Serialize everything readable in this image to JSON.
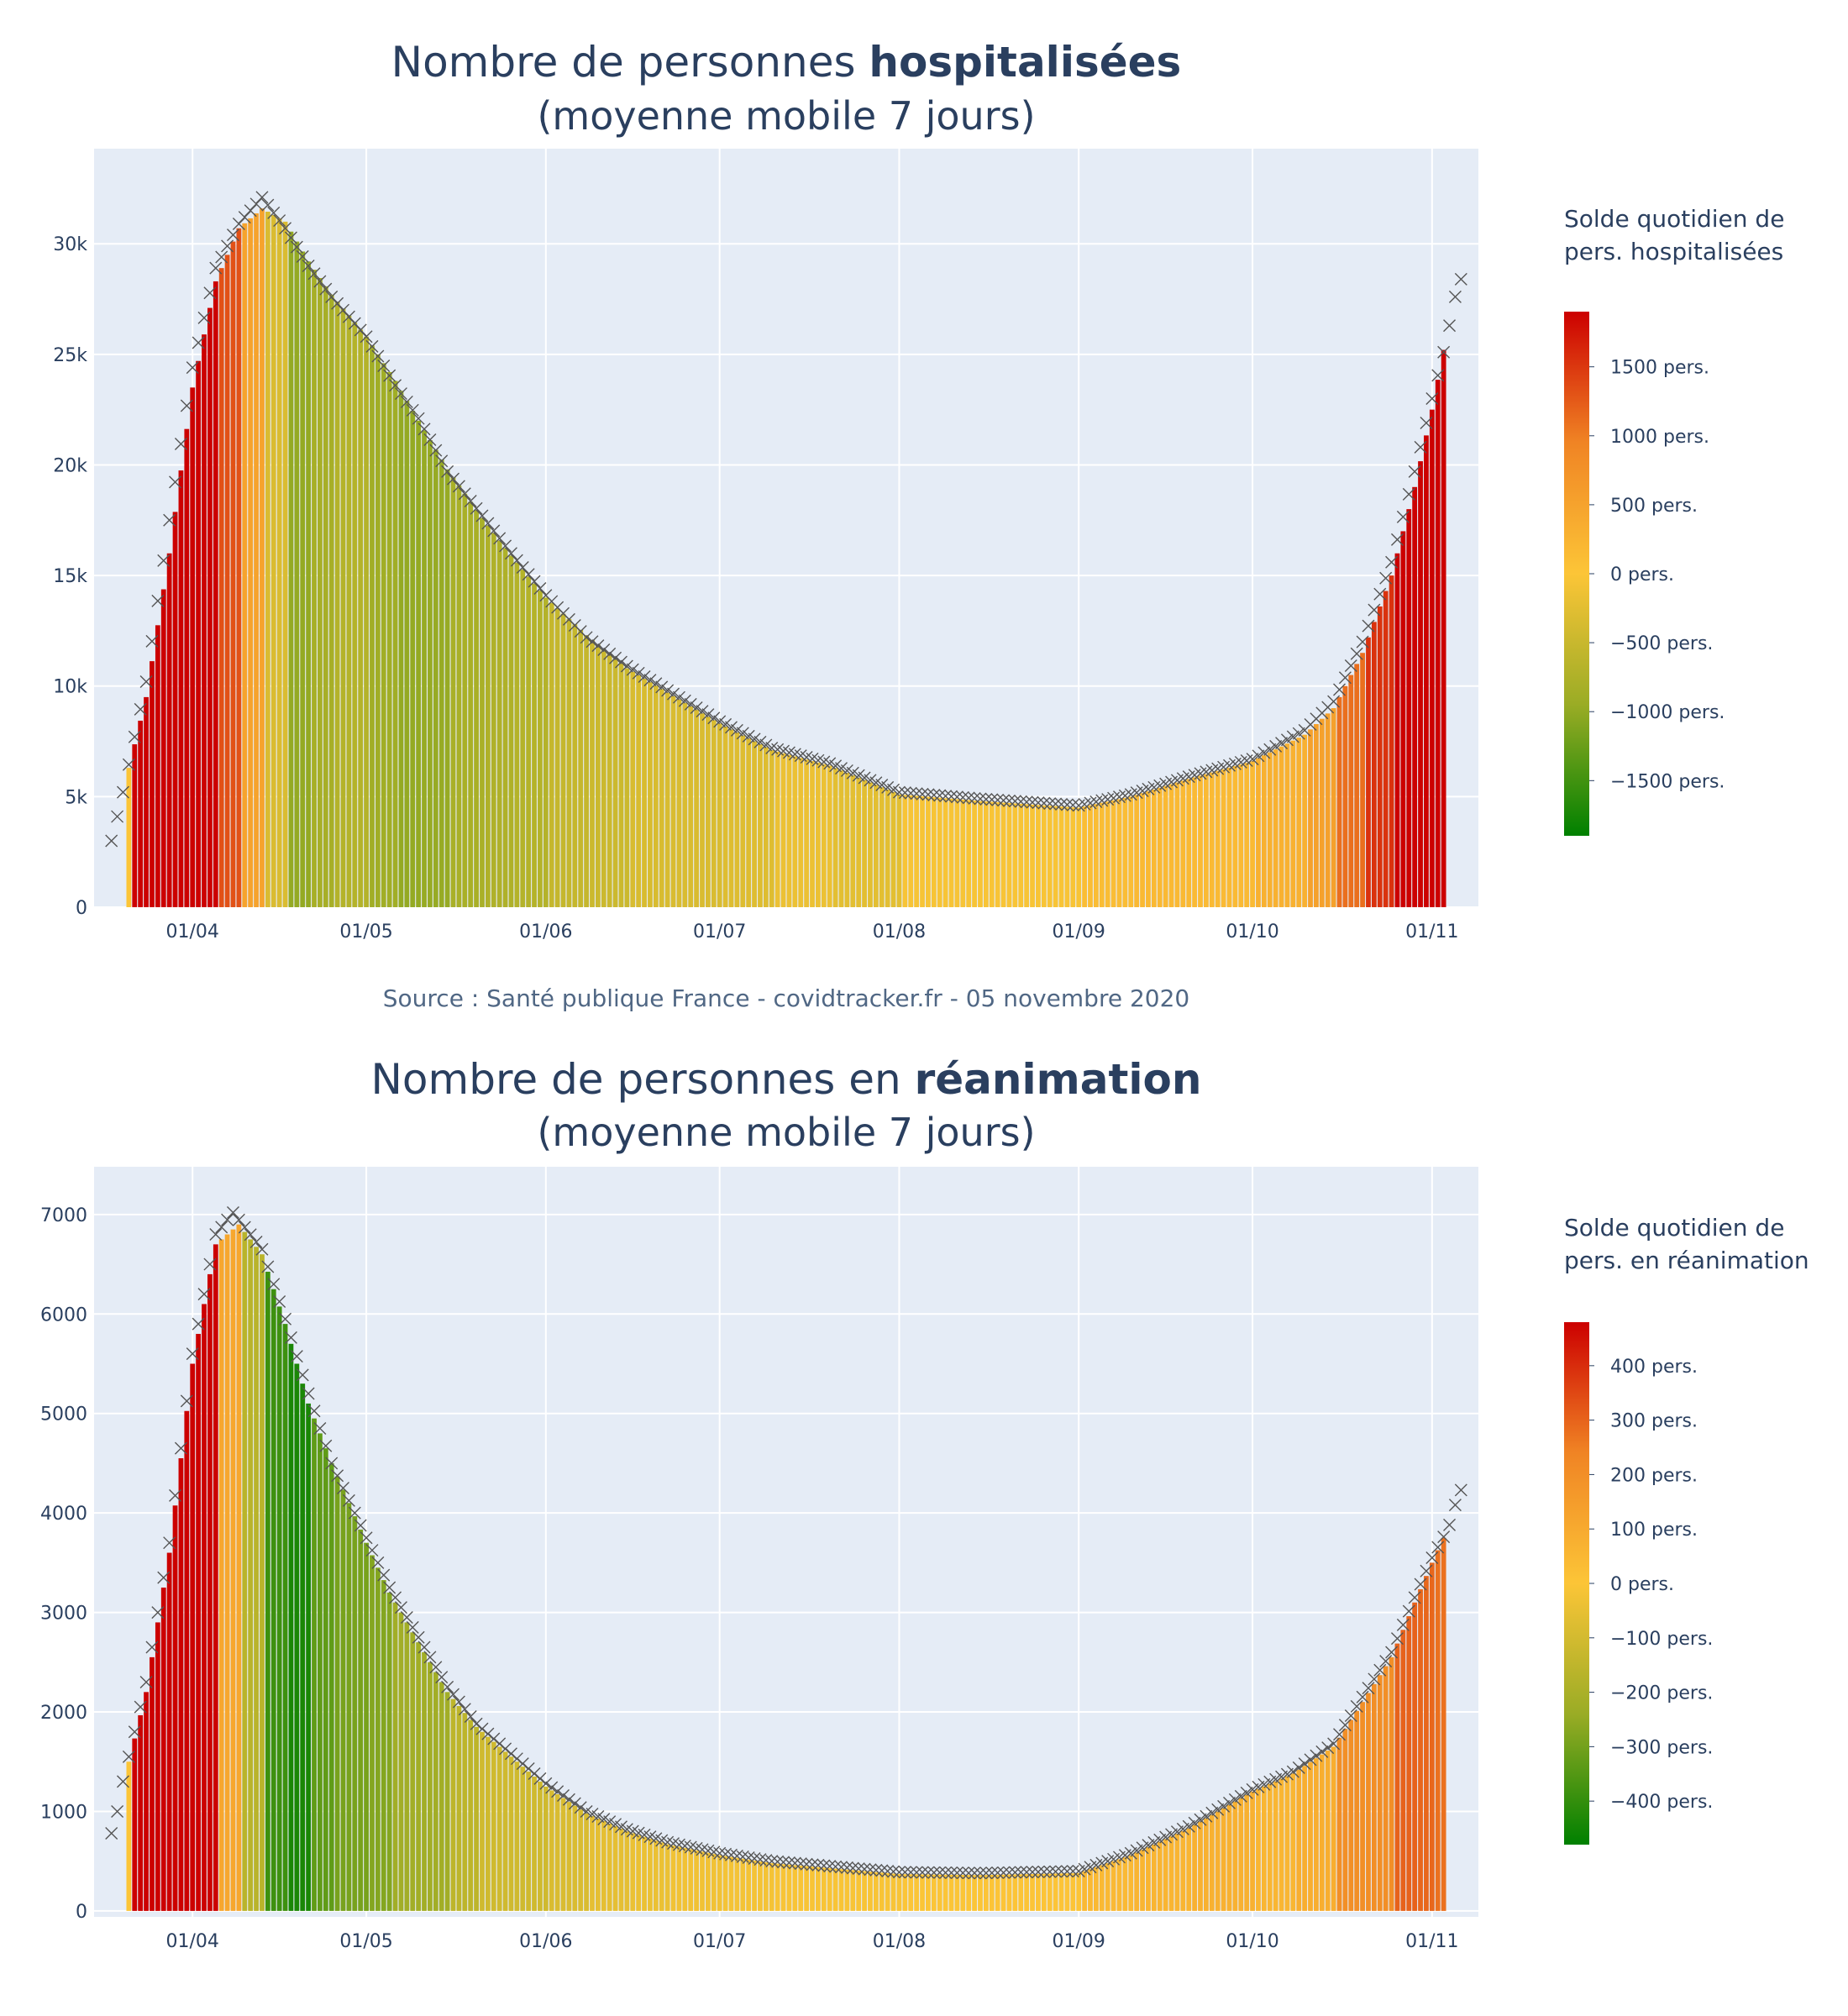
{
  "chart_data": [
    {
      "type": "bar",
      "title_prefix": "Nombre de personnes ",
      "title_bold": "hospitalisées",
      "subtitle": "(moyenne mobile 7 jours)",
      "xlabel": "",
      "ylabel": "",
      "x_tick_labels": [
        "01/04",
        "01/05",
        "01/06",
        "01/07",
        "01/08",
        "01/09",
        "01/10",
        "01/11"
      ],
      "y_tick_labels": [
        "0",
        "5k",
        "10k",
        "15k",
        "20k",
        "25k",
        "30k"
      ],
      "y_tick_values": [
        0,
        5000,
        10000,
        15000,
        20000,
        25000,
        30000
      ],
      "ylim": [
        0,
        34300
      ],
      "x_start": "2020-03-18",
      "x_end": "2020-11-05",
      "series": [
        {
          "name": "moyenne mobile 7 jours (barres)",
          "type": "bar",
          "start": "2020-03-21",
          "keypoints": [
            [
              "2020-03-21",
              6300
            ],
            [
              "2020-03-24",
              9500
            ],
            [
              "2020-03-28",
              16000
            ],
            [
              "2020-04-01",
              23500
            ],
            [
              "2020-04-05",
              28300
            ],
            [
              "2020-04-09",
              30700
            ],
            [
              "2020-04-13",
              31600
            ],
            [
              "2020-04-17",
              31000
            ],
            [
              "2020-04-21",
              29200
            ],
            [
              "2020-04-25",
              27700
            ],
            [
              "2020-05-01",
              25800
            ],
            [
              "2020-05-06",
              23800
            ],
            [
              "2020-05-10",
              22000
            ],
            [
              "2020-05-15",
              19800
            ],
            [
              "2020-05-21",
              17600
            ],
            [
              "2020-05-26",
              15900
            ],
            [
              "2020-06-01",
              14000
            ],
            [
              "2020-06-08",
              12300
            ],
            [
              "2020-06-15",
              10800
            ],
            [
              "2020-06-22",
              9700
            ],
            [
              "2020-07-01",
              8300
            ],
            [
              "2020-07-10",
              7100
            ],
            [
              "2020-07-20",
              6400
            ],
            [
              "2020-08-01",
              5100
            ],
            [
              "2020-08-15",
              4800
            ],
            [
              "2020-09-01",
              4500
            ],
            [
              "2020-09-10",
              5000
            ],
            [
              "2020-09-20",
              5800
            ],
            [
              "2020-10-01",
              6600
            ],
            [
              "2020-10-10",
              7800
            ],
            [
              "2020-10-15",
              9000
            ],
            [
              "2020-10-20",
              11500
            ],
            [
              "2020-10-25",
              15000
            ],
            [
              "2020-10-29",
              19000
            ],
            [
              "2020-11-01",
              22500
            ],
            [
              "2020-11-03",
              25200
            ]
          ]
        },
        {
          "name": "valeurs quotidiennes (croix)",
          "type": "scatter",
          "start": "2020-03-18",
          "keypoints": [
            [
              "2020-03-18",
              3000
            ],
            [
              "2020-03-19",
              4100
            ],
            [
              "2020-03-20",
              5200
            ],
            [
              "2020-03-24",
              10200
            ],
            [
              "2020-03-28",
              17500
            ],
            [
              "2020-04-01",
              24400
            ],
            [
              "2020-04-05",
              28900
            ],
            [
              "2020-04-09",
              30900
            ],
            [
              "2020-04-13",
              32100
            ],
            [
              "2020-04-17",
              30700
            ],
            [
              "2020-04-21",
              29000
            ],
            [
              "2020-04-25",
              27600
            ],
            [
              "2020-05-01",
              25800
            ],
            [
              "2020-05-06",
              23600
            ],
            [
              "2020-05-10",
              22100
            ],
            [
              "2020-05-15",
              19700
            ],
            [
              "2020-05-21",
              17700
            ],
            [
              "2020-05-26",
              16000
            ],
            [
              "2020-06-01",
              14100
            ],
            [
              "2020-06-08",
              12200
            ],
            [
              "2020-06-15",
              10900
            ],
            [
              "2020-06-22",
              9800
            ],
            [
              "2020-07-01",
              8400
            ],
            [
              "2020-07-10",
              7200
            ],
            [
              "2020-07-20",
              6500
            ],
            [
              "2020-08-01",
              5200
            ],
            [
              "2020-08-15",
              4900
            ],
            [
              "2020-09-01",
              4600
            ],
            [
              "2020-09-10",
              5100
            ],
            [
              "2020-09-20",
              5900
            ],
            [
              "2020-10-01",
              6700
            ],
            [
              "2020-10-10",
              8000
            ],
            [
              "2020-10-15",
              9300
            ],
            [
              "2020-10-20",
              12000
            ],
            [
              "2020-10-25",
              15600
            ],
            [
              "2020-10-29",
              19700
            ],
            [
              "2020-11-01",
              23000
            ],
            [
              "2020-11-03",
              25100
            ],
            [
              "2020-11-04",
              26300
            ],
            [
              "2020-11-05",
              27600
            ],
            [
              "2020-11-06",
              28400
            ]
          ]
        }
      ],
      "colorbar": {
        "title_line1": "Solde quotidien de",
        "title_line2": "pers. hospitalisées",
        "range": [
          -1900,
          1900
        ],
        "ticks": [
          1500,
          1000,
          500,
          0,
          -500,
          -1000,
          -1500
        ],
        "tick_labels": [
          "1500 pers.",
          "1000 pers.",
          "500 pers.",
          "0 pers.",
          "−500 pers.",
          "−1000 pers.",
          "−1500 pers."
        ],
        "colors": [
          "#008000",
          "#9aac25",
          "#fcc537",
          "#f08424",
          "#cc0000"
        ]
      }
    },
    {
      "type": "bar",
      "title_prefix": "Nombre de personnes en ",
      "title_bold": "réanimation",
      "subtitle": "(moyenne mobile 7 jours)",
      "xlabel": "",
      "ylabel": "",
      "x_tick_labels": [
        "01/04",
        "01/05",
        "01/06",
        "01/07",
        "01/08",
        "01/09",
        "01/10",
        "01/11"
      ],
      "y_tick_labels": [
        "0",
        "1000",
        "2000",
        "3000",
        "4000",
        "5000",
        "6000",
        "7000"
      ],
      "y_tick_values": [
        0,
        1000,
        2000,
        3000,
        4000,
        5000,
        6000,
        7000
      ],
      "ylim": [
        -60,
        7480
      ],
      "x_start": "2020-03-18",
      "x_end": "2020-11-05",
      "series": [
        {
          "name": "moyenne mobile 7 jours (barres)",
          "type": "bar",
          "start": "2020-03-21",
          "keypoints": [
            [
              "2020-03-21",
              1500
            ],
            [
              "2020-03-24",
              2200
            ],
            [
              "2020-03-28",
              3600
            ],
            [
              "2020-04-01",
              5500
            ],
            [
              "2020-04-05",
              6700
            ],
            [
              "2020-04-09",
              6900
            ],
            [
              "2020-04-13",
              6600
            ],
            [
              "2020-04-17",
              5900
            ],
            [
              "2020-04-21",
              5100
            ],
            [
              "2020-04-25",
              4500
            ],
            [
              "2020-05-01",
              3700
            ],
            [
              "2020-05-05",
              3200
            ],
            [
              "2020-05-10",
              2700
            ],
            [
              "2020-05-15",
              2200
            ],
            [
              "2020-05-20",
              1850
            ],
            [
              "2020-05-26",
              1550
            ],
            [
              "2020-06-01",
              1250
            ],
            [
              "2020-06-08",
              980
            ],
            [
              "2020-06-15",
              800
            ],
            [
              "2020-06-22",
              670
            ],
            [
              "2020-07-01",
              560
            ],
            [
              "2020-07-10",
              480
            ],
            [
              "2020-07-20",
              430
            ],
            [
              "2020-08-01",
              370
            ],
            [
              "2020-08-15",
              360
            ],
            [
              "2020-09-01",
              380
            ],
            [
              "2020-09-10",
              560
            ],
            [
              "2020-09-20",
              830
            ],
            [
              "2020-10-01",
              1200
            ],
            [
              "2020-10-08",
              1380
            ],
            [
              "2020-10-15",
              1650
            ],
            [
              "2020-10-20",
              2100
            ],
            [
              "2020-10-25",
              2550
            ],
            [
              "2020-10-29",
              3100
            ],
            [
              "2020-11-01",
              3500
            ],
            [
              "2020-11-03",
              3750
            ]
          ]
        },
        {
          "name": "valeurs quotidiennes (croix)",
          "type": "scatter",
          "start": "2020-03-18",
          "keypoints": [
            [
              "2020-03-18",
              780
            ],
            [
              "2020-03-19",
              1000
            ],
            [
              "2020-03-20",
              1300
            ],
            [
              "2020-03-24",
              2300
            ],
            [
              "2020-03-28",
              3700
            ],
            [
              "2020-04-01",
              5600
            ],
            [
              "2020-04-05",
              6800
            ],
            [
              "2020-04-08",
              7020
            ],
            [
              "2020-04-13",
              6650
            ],
            [
              "2020-04-17",
              5950
            ],
            [
              "2020-04-21",
              5200
            ],
            [
              "2020-04-25",
              4500
            ],
            [
              "2020-05-01",
              3750
            ],
            [
              "2020-05-05",
              3250
            ],
            [
              "2020-05-10",
              2750
            ],
            [
              "2020-05-15",
              2250
            ],
            [
              "2020-05-20",
              1880
            ],
            [
              "2020-05-26",
              1580
            ],
            [
              "2020-06-01",
              1280
            ],
            [
              "2020-06-08",
              1000
            ],
            [
              "2020-06-15",
              820
            ],
            [
              "2020-06-22",
              690
            ],
            [
              "2020-07-01",
              580
            ],
            [
              "2020-07-10",
              500
            ],
            [
              "2020-07-20",
              450
            ],
            [
              "2020-08-01",
              390
            ],
            [
              "2020-08-15",
              380
            ],
            [
              "2020-09-01",
              400
            ],
            [
              "2020-09-10",
              580
            ],
            [
              "2020-09-20",
              850
            ],
            [
              "2020-10-01",
              1220
            ],
            [
              "2020-10-08",
              1400
            ],
            [
              "2020-10-15",
              1680
            ],
            [
              "2020-10-20",
              2150
            ],
            [
              "2020-10-25",
              2600
            ],
            [
              "2020-10-29",
              3150
            ],
            [
              "2020-11-01",
              3550
            ],
            [
              "2020-11-03",
              3760
            ],
            [
              "2020-11-04",
              3880
            ],
            [
              "2020-11-05",
              4080
            ],
            [
              "2020-11-06",
              4230
            ]
          ]
        }
      ],
      "colorbar": {
        "title_line1": "Solde quotidien de",
        "title_line2": "pers. en réanimation",
        "range": [
          -480,
          480
        ],
        "ticks": [
          400,
          300,
          200,
          100,
          0,
          -100,
          -200,
          -300,
          -400
        ],
        "tick_labels": [
          "400 pers.",
          "300 pers.",
          "200 pers.",
          "100 pers.",
          "0 pers.",
          "−100 pers.",
          "−200 pers.",
          "−300 pers.",
          "−400 pers."
        ],
        "colors": [
          "#008000",
          "#9aac25",
          "#fcc537",
          "#f08424",
          "#cc0000"
        ]
      }
    }
  ],
  "source_text": "Source : Santé publique France - covidtracker.fr - 05 novembre 2020"
}
